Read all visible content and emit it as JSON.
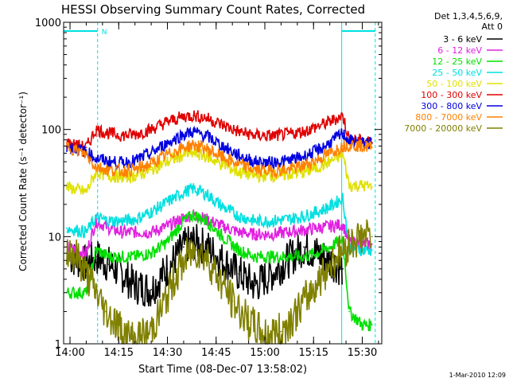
{
  "chart_data": {
    "type": "line",
    "title": "HESSI Observing Summary Count Rates, Corrected",
    "xlabel": "Start Time (08-Dec-07 13:58:02)",
    "ylabel": "Corrected Count Rate (s⁻¹ detector⁻¹)",
    "yscale": "log",
    "ylim": [
      1,
      1000
    ],
    "xlim": [
      "13:58:02",
      "15:36:00"
    ],
    "x_ticks": [
      "14:00",
      "14:15",
      "14:30",
      "14:45",
      "15:00",
      "15:15",
      "15:30"
    ],
    "y_ticks": [
      "1",
      "10",
      "100",
      "1000"
    ],
    "legend_header": [
      "Det 1,3,4,5,6,9,",
      "Att 0"
    ],
    "legend_position": "right",
    "grid": false,
    "series": [
      {
        "name": "3 - 6 keV",
        "color": "#000000",
        "x": [
          "14:00",
          "14:05",
          "14:08",
          "14:12",
          "14:16",
          "14:20",
          "14:25",
          "14:30",
          "14:35",
          "14:38",
          "14:42",
          "14:47",
          "14:52",
          "14:57",
          "15:02",
          "15:07",
          "15:12",
          "15:16",
          "15:20",
          "15:24"
        ],
        "y": [
          6.5,
          5.5,
          6.5,
          5.5,
          4.5,
          3.5,
          3.2,
          5,
          8,
          9,
          8,
          6,
          4.5,
          3.5,
          4.5,
          6,
          8,
          7,
          6,
          5
        ]
      },
      {
        "name": "6 - 12 keV",
        "color": "#e020e0",
        "x": [
          "13:59",
          "14:05",
          "14:08",
          "14:12",
          "14:16",
          "14:20",
          "14:25",
          "14:30",
          "14:35",
          "14:38",
          "14:42",
          "14:47",
          "14:52",
          "14:57",
          "15:02",
          "15:07",
          "15:12",
          "15:16",
          "15:20",
          "15:24",
          "15:26",
          "15:30",
          "15:33"
        ],
        "y": [
          8,
          7,
          14,
          12,
          11,
          11,
          11,
          12.5,
          15,
          16,
          14.5,
          12.5,
          11,
          10.5,
          10.5,
          11,
          11.5,
          12,
          12.5,
          13,
          9,
          8.5,
          8.5
        ]
      },
      {
        "name": "12 - 25 keV",
        "color": "#00e000",
        "x": [
          "13:59",
          "14:05",
          "14:08",
          "14:12",
          "14:16",
          "14:20",
          "14:25",
          "14:30",
          "14:35",
          "14:38",
          "14:42",
          "14:47",
          "14:52",
          "14:57",
          "15:02",
          "15:07",
          "15:12",
          "15:16",
          "15:20",
          "15:24",
          "15:26",
          "15:30",
          "15:33"
        ],
        "y": [
          3,
          3,
          7.5,
          6.5,
          6.5,
          6.5,
          7,
          9,
          14,
          16,
          14,
          10,
          7.5,
          6.5,
          6.5,
          6.5,
          6.5,
          7,
          8,
          9.5,
          2,
          1.5,
          1.5
        ]
      },
      {
        "name": "25 - 50 keV",
        "color": "#00e0e0",
        "x": [
          "13:59",
          "14:05",
          "14:08",
          "14:12",
          "14:16",
          "14:20",
          "14:25",
          "14:30",
          "14:35",
          "14:38",
          "14:42",
          "14:47",
          "14:52",
          "14:57",
          "15:02",
          "15:07",
          "15:12",
          "15:16",
          "15:20",
          "15:24",
          "15:26",
          "15:30",
          "15:33"
        ],
        "y": [
          12,
          11,
          15,
          14,
          14,
          14.5,
          17,
          21,
          26,
          28,
          25,
          19,
          15.5,
          14,
          14,
          14.5,
          15.5,
          17,
          19,
          23,
          8,
          7.5,
          7.5
        ]
      },
      {
        "name": "50 - 100 keV",
        "color": "#e0e000",
        "x": [
          "13:59",
          "14:05",
          "14:08",
          "14:12",
          "14:16",
          "14:20",
          "14:25",
          "14:30",
          "14:35",
          "14:38",
          "14:42",
          "14:47",
          "14:52",
          "14:57",
          "15:02",
          "15:07",
          "15:12",
          "15:16",
          "15:20",
          "15:24",
          "15:26",
          "15:30",
          "15:33"
        ],
        "y": [
          29,
          26,
          40,
          37,
          36,
          37,
          42,
          50,
          58,
          60,
          56,
          47,
          40,
          37,
          37,
          38,
          40,
          44,
          50,
          58,
          30,
          30,
          29
        ]
      },
      {
        "name": "100 - 300 keV",
        "color": "#e00000",
        "x": [
          "13:59",
          "14:05",
          "14:08",
          "14:12",
          "14:16",
          "14:20",
          "14:25",
          "14:30",
          "14:35",
          "14:38",
          "14:42",
          "14:47",
          "14:52",
          "14:57",
          "15:02",
          "15:07",
          "15:12",
          "15:16",
          "15:20",
          "15:24",
          "15:26",
          "15:30",
          "15:33"
        ],
        "y": [
          75,
          68,
          100,
          92,
          88,
          90,
          100,
          118,
          132,
          135,
          128,
          110,
          95,
          88,
          87,
          90,
          96,
          106,
          118,
          135,
          80,
          78,
          76
        ]
      },
      {
        "name": "300 - 800 keV",
        "color": "#0000e0",
        "x": [
          "13:59",
          "14:05",
          "14:08",
          "14:12",
          "14:16",
          "14:20",
          "14:25",
          "14:30",
          "14:35",
          "14:38",
          "14:42",
          "14:47",
          "14:52",
          "14:57",
          "15:02",
          "15:07",
          "15:12",
          "15:16",
          "15:20",
          "15:24",
          "15:26",
          "15:30",
          "15:33"
        ],
        "y": [
          70,
          62,
          54,
          50,
          49,
          51,
          60,
          75,
          90,
          95,
          87,
          70,
          57,
          50,
          49,
          51,
          56,
          63,
          75,
          92,
          78,
          75,
          74
        ]
      },
      {
        "name": "800 - 7000 keV",
        "color": "#ff8000",
        "x": [
          "13:59",
          "14:05",
          "14:08",
          "14:12",
          "14:16",
          "14:20",
          "14:25",
          "14:30",
          "14:35",
          "14:38",
          "14:42",
          "14:47",
          "14:52",
          "14:57",
          "15:02",
          "15:07",
          "15:12",
          "15:16",
          "15:20",
          "15:24",
          "15:26",
          "15:30",
          "15:33"
        ],
        "y": [
          70,
          58,
          45,
          42,
          41,
          42,
          48,
          58,
          68,
          72,
          66,
          55,
          47,
          42,
          41,
          42,
          46,
          52,
          60,
          70,
          72,
          70,
          68
        ]
      },
      {
        "name": "7000 - 20000 keV",
        "color": "#808000",
        "x": [
          "13:59",
          "14:02",
          "14:05",
          "14:08",
          "14:11",
          "14:14",
          "14:17",
          "14:20",
          "14:24",
          "14:28",
          "14:32",
          "14:36",
          "14:39",
          "14:42",
          "14:46",
          "14:50",
          "14:55",
          "15:00",
          "15:05",
          "15:10",
          "15:14",
          "15:18",
          "15:22",
          "15:24",
          "15:27",
          "15:30",
          "15:33"
        ],
        "y": [
          8,
          6.5,
          4.5,
          3,
          2,
          1.6,
          1.2,
          1.1,
          1.2,
          2,
          4,
          6.5,
          7.5,
          6.5,
          4,
          2.5,
          1.6,
          1.2,
          1.3,
          2,
          3,
          4.5,
          6.5,
          7.5,
          9,
          10,
          10
        ]
      }
    ],
    "markers": [
      {
        "label": "N",
        "x_start": "13:58:02",
        "x_end": "14:08:30"
      },
      {
        "label": "",
        "x_start": "15:23:40",
        "x_end": "15:34:00"
      }
    ],
    "footer_timestamp": "1-Mar-2010 12:09"
  }
}
